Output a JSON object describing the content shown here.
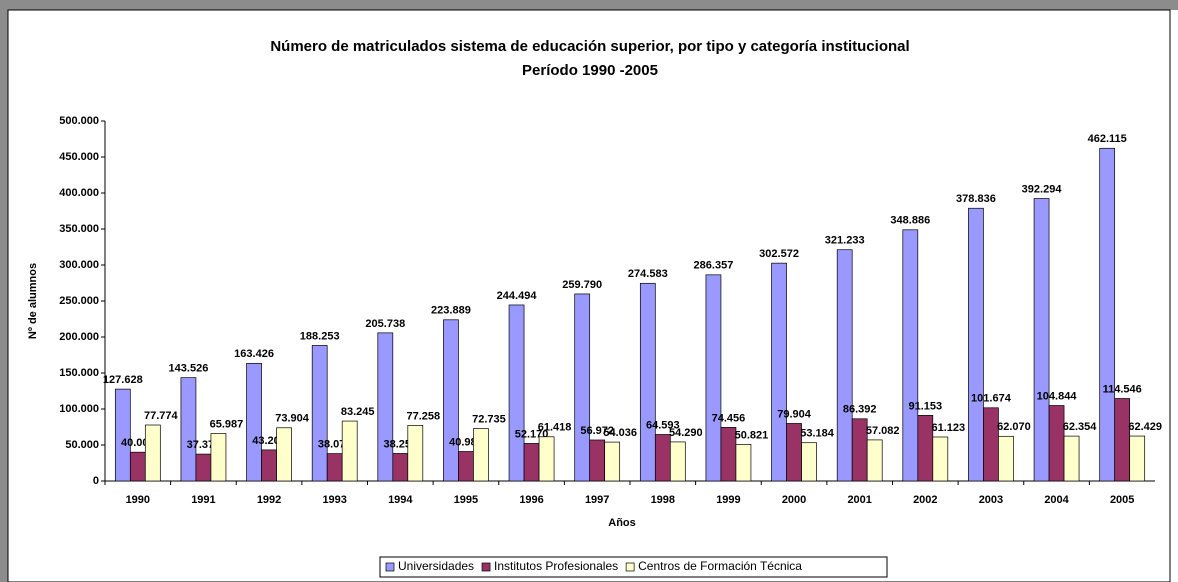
{
  "chart_data": {
    "type": "bar",
    "title": "Número de matriculados sistema de educación superior, por tipo y categoría institucional",
    "subtitle": "Período 1990 -2005",
    "x_label": "Años",
    "y_label": "Nº de alumnos",
    "categories": [
      "1990",
      "1991",
      "1992",
      "1993",
      "1994",
      "1995",
      "1996",
      "1997",
      "1998",
      "1999",
      "2000",
      "2001",
      "2002",
      "2003",
      "2004",
      "2005"
    ],
    "series": [
      {
        "name": "Universidades",
        "color": "#9999ff",
        "values": [
          127628,
          143526,
          163426,
          188253,
          205738,
          223889,
          244494,
          259790,
          274583,
          286357,
          302572,
          321233,
          348886,
          378836,
          392294,
          462115
        ],
        "value_labels": [
          "127.628",
          "143.526",
          "163.426",
          "188.253",
          "205.738",
          "223.889",
          "244.494",
          "259.790",
          "274.583",
          "286.357",
          "302.572",
          "321.233",
          "348.886",
          "378.836",
          "392.294",
          "462.115"
        ]
      },
      {
        "name": "Institutos Profesionales",
        "color": "#993366",
        "values": [
          40006,
          37376,
          43203,
          38076,
          38252,
          40980,
          52170,
          56972,
          64593,
          74456,
          79904,
          86392,
          91153,
          101674,
          104844,
          114546
        ],
        "value_labels": [
          "40.006",
          "37.376",
          "43.203",
          "38.076",
          "38.252",
          "40.980",
          "52.170",
          "56.972",
          "64.593",
          "74.456",
          "79.904",
          "86.392",
          "91.153",
          "101.674",
          "104.844",
          "114.546"
        ]
      },
      {
        "name": "Centros de Formación Técnica",
        "color": "#ffffcc",
        "values": [
          77774,
          65987,
          73904,
          83245,
          77258,
          72735,
          61418,
          54036,
          54290,
          50821,
          53184,
          57082,
          61123,
          62070,
          62354,
          62429
        ],
        "value_labels": [
          "77.774",
          "65.987",
          "73.904",
          "83.245",
          "77.258",
          "72.735",
          "61.418",
          "54.036",
          "54.290",
          "50.821",
          "53.184",
          "57.082",
          "61.123",
          "62.070",
          "62.354",
          "62.429"
        ]
      }
    ],
    "ylim": [
      0,
      500000
    ],
    "yticks": [
      0,
      {
        "value": 50000,
        "label": "50.000"
      },
      {
        "value": 100000,
        "label": "100.000"
      },
      {
        "value": 150000,
        "label": "150.000"
      },
      {
        "value": 200000,
        "label": "200.000"
      },
      {
        "value": 250000,
        "label": "250.000"
      },
      {
        "value": 300000,
        "label": "300.000"
      },
      {
        "value": 350000,
        "label": "350.000"
      },
      {
        "value": 400000,
        "label": "400.000"
      },
      {
        "value": 450000,
        "label": "450.000"
      },
      {
        "value": 500000,
        "label": "500.000"
      }
    ],
    "legend": "bottom"
  }
}
